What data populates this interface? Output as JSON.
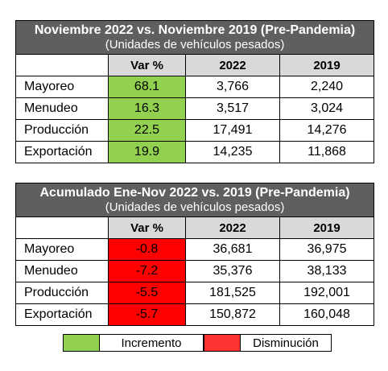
{
  "table1": {
    "title": "Noviembre 2022 vs. Noviembre 2019 (Pre-Pandemia)",
    "subtitle": "(Unidades de vehículos pesados)",
    "headers": [
      "Var %",
      "2022",
      "2019"
    ],
    "rows": [
      {
        "label": "Mayoreo",
        "var": "68.1",
        "y2022": "3,766",
        "y2019": "2,240"
      },
      {
        "label": "Menudeo",
        "var": "16.3",
        "y2022": "3,517",
        "y2019": "3,024"
      },
      {
        "label": "Producción",
        "var": "22.5",
        "y2022": "17,491",
        "y2019": "14,276"
      },
      {
        "label": "Exportación",
        "var": "19.9",
        "y2022": "14,235",
        "y2019": "11,868"
      }
    ]
  },
  "table2": {
    "title": "Acumulado Ene-Nov 2022 vs. 2019 (Pre-Pandemia)",
    "subtitle": "(Unidades de vehículos pesados)",
    "headers": [
      "Var %",
      "2022",
      "2019"
    ],
    "rows": [
      {
        "label": "Mayoreo",
        "var": "-0.8",
        "y2022": "36,681",
        "y2019": "36,975"
      },
      {
        "label": "Menudeo",
        "var": "-7.2",
        "y2022": "35,376",
        "y2019": "38,133"
      },
      {
        "label": "Producción",
        "var": "-5.5",
        "y2022": "181,525",
        "y2019": "192,001"
      },
      {
        "label": "Exportación",
        "var": "-5.7",
        "y2022": "150,872",
        "y2019": "160,048"
      }
    ]
  },
  "legend": {
    "increase": "Incremento",
    "decrease": "Disminución"
  },
  "colors": {
    "header_bg": "#5f5f5f",
    "column_header_bg": "#d9d9d9",
    "increase": "#92d050",
    "decrease": "#ff0000"
  }
}
